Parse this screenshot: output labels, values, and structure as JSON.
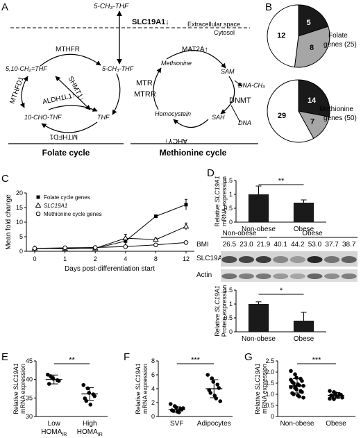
{
  "panels": {
    "A": "A",
    "B": "B",
    "C": "C",
    "D": "D",
    "E": "E",
    "F": "F",
    "G": "G"
  },
  "panelA": {
    "top_metabolite": "5-CH₃-THF",
    "transporter": "SLC19A1↓",
    "extracellular": "Extracellular space",
    "cytosol": "Cytosol",
    "folate_cycle": "Folate cycle",
    "methionine_cycle": "Methionine cycle",
    "nodes": {
      "mthfr": "MTHFR",
      "ch2thf": "5,10-CH₂=THF",
      "ch3thf": "5-CH₃-THF",
      "mthfd1_left": "MTHFD1",
      "shmt1": "SHMT1↓",
      "aldh": "ALDH1L1↑",
      "chothf": "10-CHO-THF",
      "thf": "THF",
      "mthfd1_bottom": "MTHFD1",
      "mtr": "MTR",
      "mtrr": "MTRR",
      "mat2a": "MAT2A↑",
      "methionine": "Methionine",
      "sam": "SAM",
      "dnach3": "DNA-CH₃",
      "dnmt": "DNMT",
      "homocystein": "Homocystein",
      "sah": "SAH",
      "dna": "DNA",
      "ahcy": "AHCY↑"
    }
  },
  "panelB": {
    "pies": [
      {
        "label": "Folate",
        "label2": "genes (25)",
        "values": [
          5,
          8,
          12
        ],
        "colors": [
          "#1a1a1a",
          "#a6a6a6",
          "#ffffff"
        ]
      },
      {
        "label": "Methionine",
        "label2": "genes (50)",
        "values": [
          14,
          7,
          29
        ],
        "colors": [
          "#1a1a1a",
          "#a6a6a6",
          "#ffffff"
        ]
      }
    ]
  },
  "panelC": {
    "chart_data": {
      "type": "line",
      "categories": [
        "0",
        "1",
        "2",
        "4",
        "8",
        "12"
      ],
      "ylim": [
        0,
        20
      ],
      "yticks": [
        "0",
        "5",
        "10",
        "15",
        "20"
      ],
      "xlabel": "Days post-differentiation start",
      "ylabel": "Mean fold change",
      "legend": "top-left",
      "series": [
        {
          "name": "Folate cycle genes",
          "marker": "square",
          "values": [
            1,
            0.9,
            1,
            3.5,
            12,
            16
          ],
          "err": [
            0.2,
            0.2,
            0.2,
            1.2,
            0.5,
            1.8
          ]
        },
        {
          "name": "SLC19A1",
          "marker": "triangle",
          "values": [
            1,
            0.9,
            1,
            4.5,
            4,
            8.5
          ],
          "err": [
            0.2,
            0.2,
            0.2,
            1.3,
            0.5,
            1.2
          ]
        },
        {
          "name": "Methionine cycle genes",
          "marker": "circle",
          "values": [
            1,
            1.2,
            1.3,
            1.6,
            2.2,
            3
          ],
          "err": [
            0.2,
            0.2,
            0.2,
            0.3,
            0.3,
            0.4
          ]
        }
      ]
    }
  },
  "panelD": {
    "mrna_chart": {
      "type": "bar",
      "categories": [
        "Non-obese",
        "Obese"
      ],
      "values": [
        1,
        0.7
      ],
      "err": [
        0.3,
        0.1
      ],
      "ylim": [
        0,
        1.5
      ],
      "yticks": [
        "0",
        "0.5",
        "1",
        "1.5"
      ],
      "ylabel_1": "Relative",
      "ylabel_gene": "SLC19A1",
      "ylabel_2": "mRNA expression",
      "sig": "**"
    },
    "blot": {
      "group1": "Non-obese",
      "group2": "Obese",
      "bmi_label": "BMI",
      "bmi": [
        "26.5",
        "23.0",
        "21.9",
        "40.1",
        "44.2",
        "53.0",
        "37.7",
        "38.7"
      ],
      "row1": "SLC19A1",
      "row2": "Actin"
    },
    "protein_chart": {
      "type": "bar",
      "categories": [
        "Non-obese",
        "Obese"
      ],
      "values": [
        1,
        0.4
      ],
      "err": [
        0.08,
        0.3
      ],
      "ylim": [
        0,
        1.5
      ],
      "yticks": [
        "0",
        "0.5",
        "1",
        "1.5"
      ],
      "ylabel_1": "Relative",
      "ylabel_gene": "SLC19A1",
      "ylabel_2": "Protein expression",
      "sig": "*"
    }
  },
  "panelE": {
    "chart_data": {
      "type": "scatter",
      "categories": [
        "Low",
        "High"
      ],
      "sub": "IR",
      "catbase": "HOMA",
      "ylim": [
        30,
        45
      ],
      "yticks": [
        "30",
        "35",
        "40",
        "45"
      ],
      "ylabel_1": "Relative",
      "ylabel_gene": "SLC19A1",
      "ylabel_2": "mRNA expression",
      "sig": "**",
      "groups": [
        {
          "mean": 40,
          "sd": 1.2,
          "points": [
            41.3,
            40.5,
            40.2,
            39.8,
            39.6,
            38.8,
            40.9
          ]
        },
        {
          "mean": 36.1,
          "sd": 1.7,
          "points": [
            38.5,
            37.6,
            36.4,
            36.0,
            35.5,
            34.9,
            34.2,
            33.2
          ]
        }
      ]
    }
  },
  "panelF": {
    "chart_data": {
      "type": "scatter",
      "categories": [
        "SVF",
        "Adipocytes"
      ],
      "ylim": [
        0,
        8
      ],
      "yticks": [
        "0",
        "2",
        "4",
        "6",
        "8"
      ],
      "ylabel_1": "Relative",
      "ylabel_gene": "SLC19A1",
      "ylabel_2": "mRNA expression",
      "sig": "***",
      "groups": [
        {
          "mean": 1.0,
          "sd": 0.4,
          "points": [
            1.8,
            1.5,
            1.3,
            1.1,
            1.0,
            0.9,
            0.8,
            0.7,
            0.6,
            1.2
          ]
        },
        {
          "mean": 4.0,
          "sd": 1.3,
          "points": [
            6.0,
            5.5,
            5.0,
            4.6,
            4.1,
            3.8,
            3.4,
            3.0,
            2.6,
            2.2
          ]
        }
      ]
    }
  },
  "panelG": {
    "chart_data": {
      "type": "scatter",
      "categories": [
        "Non-obese",
        "Obese"
      ],
      "ylim": [
        0,
        2.5
      ],
      "yticks": [
        "0",
        "0.5",
        "1.0",
        "1.5",
        "2.0",
        "2.5"
      ],
      "ylabel_1": "Relative",
      "ylabel_gene": "SLC19A1",
      "ylabel_2": "mRNA expression",
      "sig": "***",
      "groups": [
        {
          "mean": 1.38,
          "sd": 0.32,
          "points": [
            2.05,
            1.9,
            1.75,
            1.7,
            1.6,
            1.55,
            1.5,
            1.45,
            1.4,
            1.38,
            1.32,
            1.28,
            1.22,
            1.15,
            1.1,
            1.05,
            1.0,
            0.95,
            0.9,
            0.85,
            1.65,
            1.35
          ]
        },
        {
          "mean": 0.95,
          "sd": 0.13,
          "points": [
            1.15,
            1.1,
            1.05,
            1.0,
            0.98,
            0.95,
            0.92,
            0.9,
            0.88,
            0.85,
            0.8,
            0.78,
            1.02
          ]
        }
      ]
    }
  }
}
